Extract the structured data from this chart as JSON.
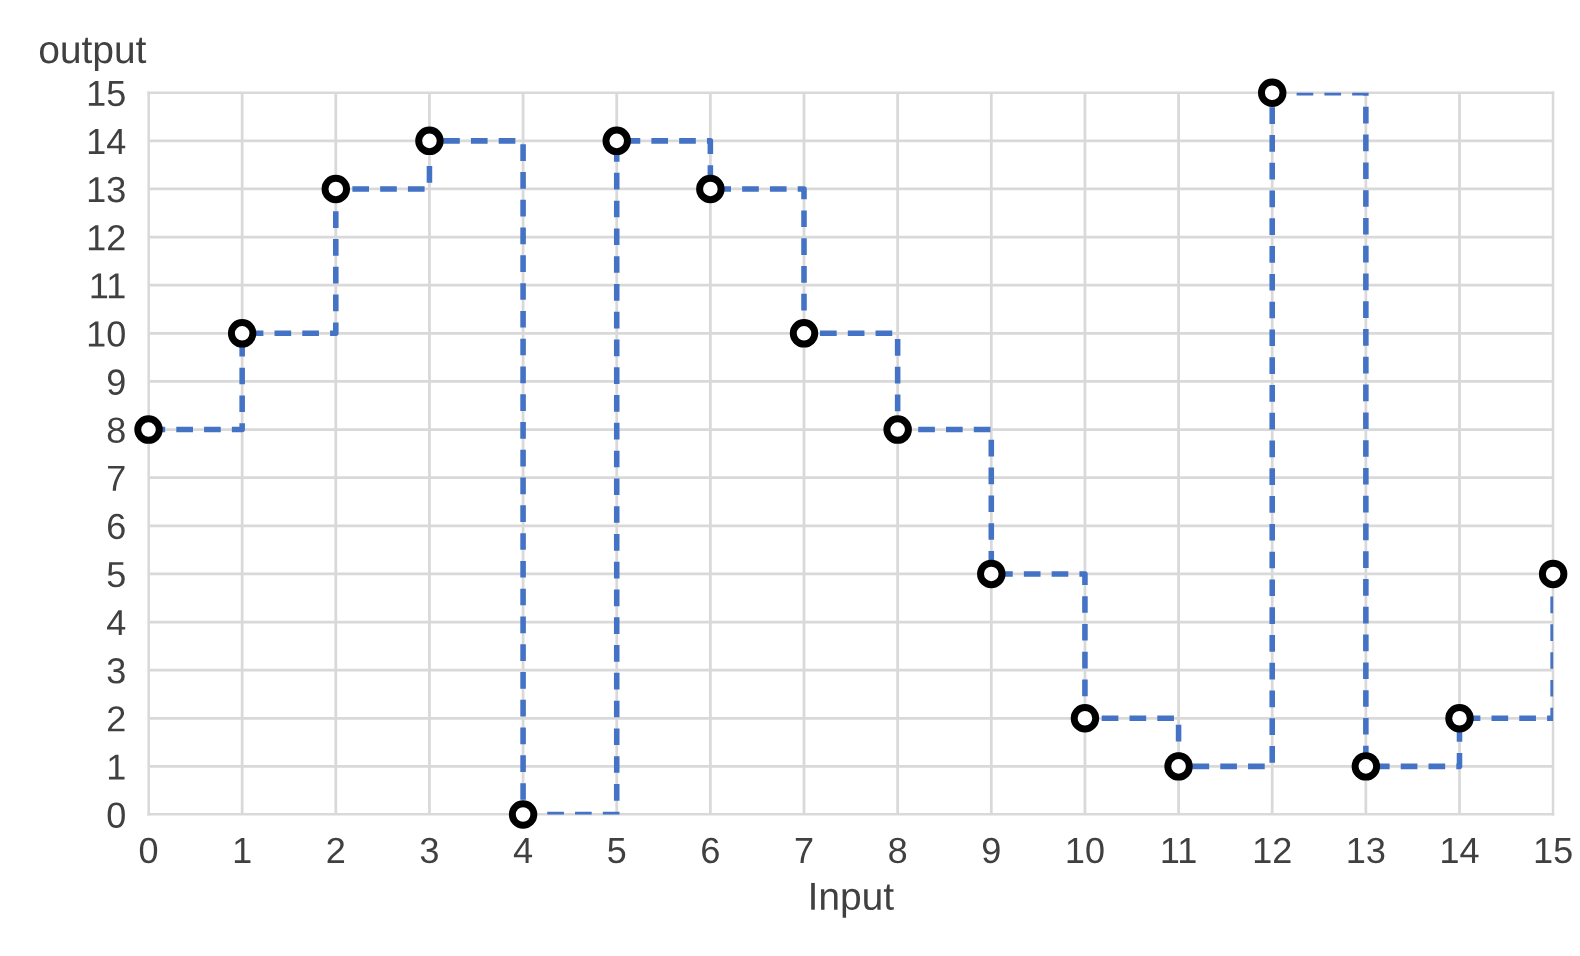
{
  "chart_data": {
    "type": "step",
    "xlabel": "Input",
    "ylabel": "output",
    "x": [
      0,
      1,
      2,
      3,
      4,
      5,
      6,
      7,
      8,
      9,
      10,
      11,
      12,
      13,
      14,
      15
    ],
    "series": [
      {
        "color": "#4472c4",
        "line_style": "dashed",
        "values": [
          8,
          10,
          13,
          14,
          0,
          14,
          13,
          10,
          8,
          5,
          2,
          1,
          15,
          1,
          2,
          5
        ]
      },
      {
        "type": "scatter",
        "color": "#000000",
        "marker": "circle",
        "values": [
          8,
          10,
          13,
          14,
          0,
          14,
          13,
          10,
          8,
          5,
          2,
          1,
          15,
          1,
          2,
          5
        ]
      }
    ],
    "xlim": [
      0,
      15
    ],
    "xticks": [
      0,
      1,
      2,
      3,
      4,
      5,
      6,
      7,
      8,
      9,
      10,
      11,
      12,
      13,
      14,
      15
    ],
    "ylim": [
      0,
      15
    ],
    "yticks": [
      0,
      1,
      2,
      3,
      4,
      5,
      6,
      7,
      8,
      9,
      10,
      11,
      12,
      13,
      14,
      15
    ],
    "grid": true,
    "legend": false
  }
}
